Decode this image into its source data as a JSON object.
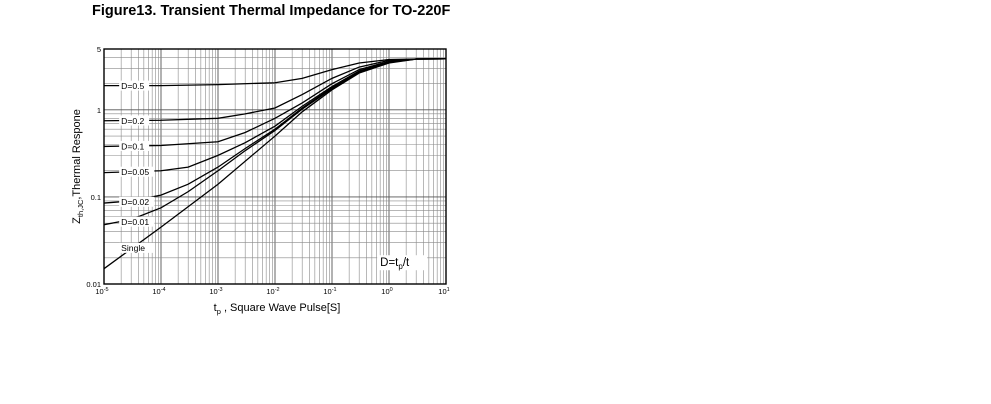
{
  "figure_title": "Figure13. Transient Thermal Impedance for TO-220F",
  "chart_data": {
    "type": "line",
    "title": "Figure13. Transient Thermal Impedance for TO-220F",
    "xlabel": {
      "main": "t",
      "sub": "p",
      "rest": " ,  Square Wave Pulse[S]"
    },
    "ylabel": {
      "main": "Z",
      "sub": "th,JC",
      "rest": ",Thermal Respone"
    },
    "x_scale": "log",
    "y_scale": "log",
    "xlim": [
      1e-05,
      10
    ],
    "ylim": [
      0.01,
      5
    ],
    "grid": true,
    "x_ticks": [
      {
        "value": 1e-05,
        "base": "10",
        "exp": "-5"
      },
      {
        "value": 0.0001,
        "base": "10",
        "exp": "-4"
      },
      {
        "value": 0.001,
        "base": "10",
        "exp": "-3"
      },
      {
        "value": 0.01,
        "base": "10",
        "exp": "-2"
      },
      {
        "value": 0.1,
        "base": "10",
        "exp": "-1"
      },
      {
        "value": 1,
        "base": "10",
        "exp": "0"
      },
      {
        "value": 10,
        "base": "10",
        "exp": "1"
      }
    ],
    "y_ticks": [
      {
        "value": 0.01,
        "label": "0.01"
      },
      {
        "value": 0.1,
        "label": "0.1"
      },
      {
        "value": 1,
        "label": "1"
      },
      {
        "value": 5,
        "label": "5"
      }
    ],
    "series": [
      {
        "name": "D=0.5",
        "x": [
          1e-05,
          0.0001,
          0.001,
          0.01,
          0.03,
          0.1,
          0.3,
          1,
          3,
          10
        ],
        "y": [
          1.9,
          1.9,
          1.95,
          2.05,
          2.3,
          2.9,
          3.45,
          3.78,
          3.84,
          3.85
        ]
      },
      {
        "name": "D=0.2",
        "x": [
          1e-05,
          0.0001,
          0.001,
          0.003,
          0.01,
          0.03,
          0.1,
          0.3,
          1,
          3,
          10
        ],
        "y": [
          0.75,
          0.76,
          0.8,
          0.9,
          1.05,
          1.5,
          2.3,
          3.1,
          3.7,
          3.84,
          3.85
        ]
      },
      {
        "name": "D=0.1",
        "x": [
          1e-05,
          0.0001,
          0.001,
          0.003,
          0.01,
          0.03,
          0.1,
          0.3,
          1,
          3,
          10
        ],
        "y": [
          0.38,
          0.39,
          0.43,
          0.55,
          0.8,
          1.2,
          2.0,
          2.9,
          3.6,
          3.84,
          3.85
        ]
      },
      {
        "name": "D=0.05",
        "x": [
          1e-05,
          0.0001,
          0.0003,
          0.001,
          0.003,
          0.01,
          0.03,
          0.1,
          0.3,
          1,
          3,
          10
        ],
        "y": [
          0.19,
          0.2,
          0.22,
          0.3,
          0.42,
          0.65,
          1.1,
          1.85,
          2.8,
          3.55,
          3.84,
          3.85
        ]
      },
      {
        "name": "D=0.02",
        "x": [
          1e-05,
          3e-05,
          0.0001,
          0.0003,
          0.001,
          0.003,
          0.01,
          0.03,
          0.1,
          0.3,
          1,
          3,
          10
        ],
        "y": [
          0.085,
          0.09,
          0.105,
          0.14,
          0.22,
          0.36,
          0.6,
          1.05,
          1.8,
          2.75,
          3.5,
          3.84,
          3.85
        ]
      },
      {
        "name": "D=0.01",
        "x": [
          1e-05,
          3e-05,
          0.0001,
          0.0003,
          0.001,
          0.003,
          0.01,
          0.03,
          0.1,
          0.3,
          1,
          3,
          10
        ],
        "y": [
          0.048,
          0.055,
          0.075,
          0.115,
          0.2,
          0.34,
          0.58,
          1.02,
          1.75,
          2.7,
          3.5,
          3.84,
          3.85
        ]
      },
      {
        "name": "Single",
        "x": [
          1e-05,
          0.0001,
          0.001,
          0.01,
          0.03,
          0.1,
          0.3,
          1,
          3,
          10
        ],
        "y": [
          0.015,
          0.045,
          0.14,
          0.5,
          0.95,
          1.7,
          2.65,
          3.45,
          3.83,
          3.85
        ]
      }
    ],
    "series_labels": [
      {
        "text": "D=0.5",
        "x": 2e-05,
        "y": 1.9
      },
      {
        "text": "D=0.2",
        "x": 2e-05,
        "y": 0.755
      },
      {
        "text": "D=0.1",
        "x": 2e-05,
        "y": 0.385
      },
      {
        "text": "D=0.05",
        "x": 2e-05,
        "y": 0.195
      },
      {
        "text": "D=0.02",
        "x": 2e-05,
        "y": 0.088
      },
      {
        "text": "D=0.01",
        "x": 2e-05,
        "y": 0.052
      },
      {
        "text": "Single",
        "x": 2e-05,
        "y": 0.026
      }
    ],
    "annotation": {
      "main": "D=t",
      "sub": "p",
      "rest": "/t"
    }
  }
}
